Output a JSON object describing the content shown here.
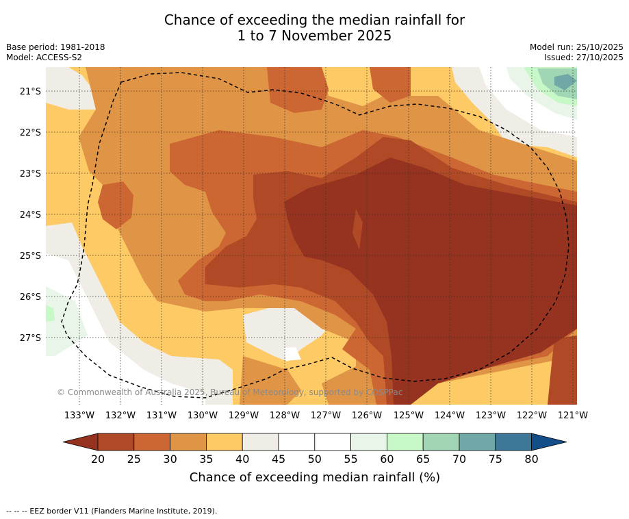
{
  "title": {
    "line1": "Chance of exceeding the median rainfall for",
    "line2": "1 to 7 November 2025"
  },
  "meta": {
    "base_period": "Base period: 1981-2018",
    "model": "Model: ACCESS-S2",
    "model_run": "Model run: 25/10/2025",
    "issued": "Issued: 27/10/2025"
  },
  "map": {
    "lat_labels": [
      "21°S",
      "22°S",
      "23°S",
      "24°S",
      "25°S",
      "26°S",
      "27°S"
    ],
    "lon_labels": [
      "133°W",
      "132°W",
      "131°W",
      "130°W",
      "129°W",
      "128°W",
      "127°W",
      "126°W",
      "125°W",
      "124°W",
      "123°W",
      "122°W",
      "121°W"
    ],
    "copyright": "© Commonwealth of Australia 2025, Bureau of Meteorology, supported by COSPPac"
  },
  "colorbar": {
    "ticks": [
      "20",
      "25",
      "30",
      "35",
      "40",
      "45",
      "50",
      "55",
      "60",
      "65",
      "70",
      "75",
      "80"
    ],
    "label": "Chance of exceeding median rainfall (%)",
    "colors": [
      "#963320",
      "#b04a26",
      "#cc6633",
      "#e09445",
      "#fdca66",
      "#f0ece6",
      "#ffffff",
      "#ffffff",
      "#eaf5ea",
      "#c8f8c8",
      "#a0d6b4",
      "#70a8a8",
      "#3d7898",
      "#134e88"
    ]
  },
  "footer": {
    "legend_symbol": "-- -- --",
    "text": "EEZ border V11 (Flanders Marine Institute, 2019)."
  }
}
